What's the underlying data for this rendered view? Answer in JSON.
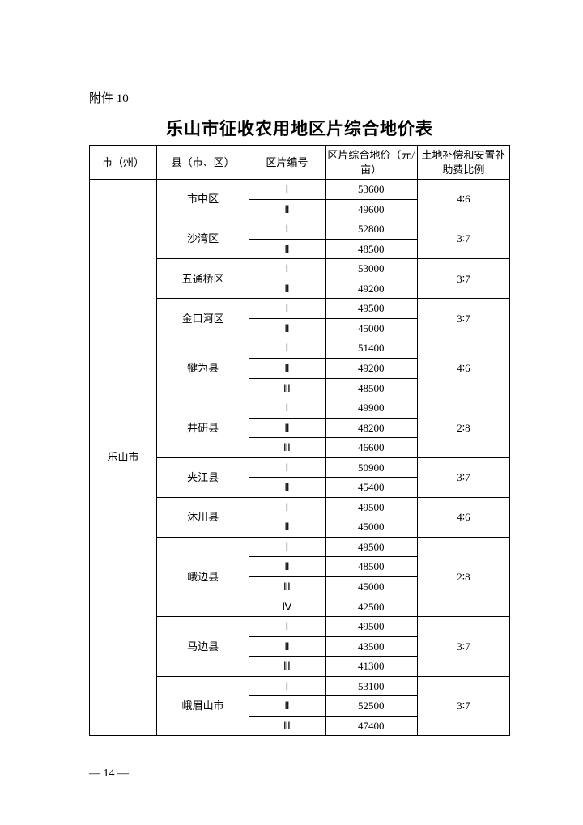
{
  "attachment_label": "附件 10",
  "title": "乐山市征收农用地区片综合地价表",
  "headers": {
    "city": "市（州）",
    "county": "县（市、区）",
    "zone": "区片编号",
    "price": "区片综合地价（元/亩）",
    "ratio": "土地补偿和安置补助费比例"
  },
  "city_name": "乐山市",
  "counties": [
    {
      "name": "市中区",
      "ratio": "4∶6",
      "zones": [
        {
          "z": "Ⅰ",
          "p": "53600"
        },
        {
          "z": "Ⅱ",
          "p": "49600"
        }
      ]
    },
    {
      "name": "沙湾区",
      "ratio": "3∶7",
      "zones": [
        {
          "z": "Ⅰ",
          "p": "52800"
        },
        {
          "z": "Ⅱ",
          "p": "48500"
        }
      ]
    },
    {
      "name": "五通桥区",
      "ratio": "3∶7",
      "zones": [
        {
          "z": "Ⅰ",
          "p": "53000"
        },
        {
          "z": "Ⅱ",
          "p": "49200"
        }
      ]
    },
    {
      "name": "金口河区",
      "ratio": "3∶7",
      "zones": [
        {
          "z": "Ⅰ",
          "p": "49500"
        },
        {
          "z": "Ⅱ",
          "p": "45000"
        }
      ]
    },
    {
      "name": "犍为县",
      "ratio": "4∶6",
      "zones": [
        {
          "z": "Ⅰ",
          "p": "51400"
        },
        {
          "z": "Ⅱ",
          "p": "49200"
        },
        {
          "z": "Ⅲ",
          "p": "48500"
        }
      ]
    },
    {
      "name": "井研县",
      "ratio": "2∶8",
      "zones": [
        {
          "z": "Ⅰ",
          "p": "49900"
        },
        {
          "z": "Ⅱ",
          "p": "48200"
        },
        {
          "z": "Ⅲ",
          "p": "46600"
        }
      ]
    },
    {
      "name": "夹江县",
      "ratio": "3∶7",
      "zones": [
        {
          "z": "Ⅰ",
          "p": "50900"
        },
        {
          "z": "Ⅱ",
          "p": "45400"
        }
      ]
    },
    {
      "name": "沐川县",
      "ratio": "4∶6",
      "zones": [
        {
          "z": "Ⅰ",
          "p": "49500"
        },
        {
          "z": "Ⅱ",
          "p": "45000"
        }
      ]
    },
    {
      "name": "峨边县",
      "ratio": "2∶8",
      "zones": [
        {
          "z": "Ⅰ",
          "p": "49500"
        },
        {
          "z": "Ⅱ",
          "p": "48500"
        },
        {
          "z": "Ⅲ",
          "p": "45000"
        },
        {
          "z": "Ⅳ",
          "p": "42500"
        }
      ]
    },
    {
      "name": "马边县",
      "ratio": "3∶7",
      "zones": [
        {
          "z": "Ⅰ",
          "p": "49500"
        },
        {
          "z": "Ⅱ",
          "p": "43500"
        },
        {
          "z": "Ⅲ",
          "p": "41300"
        }
      ]
    },
    {
      "name": "峨眉山市",
      "ratio": "3∶7",
      "zones": [
        {
          "z": "Ⅰ",
          "p": "53100"
        },
        {
          "z": "Ⅱ",
          "p": "52500"
        },
        {
          "z": "Ⅲ",
          "p": "47400"
        }
      ]
    }
  ],
  "page_number": "— 14 —"
}
